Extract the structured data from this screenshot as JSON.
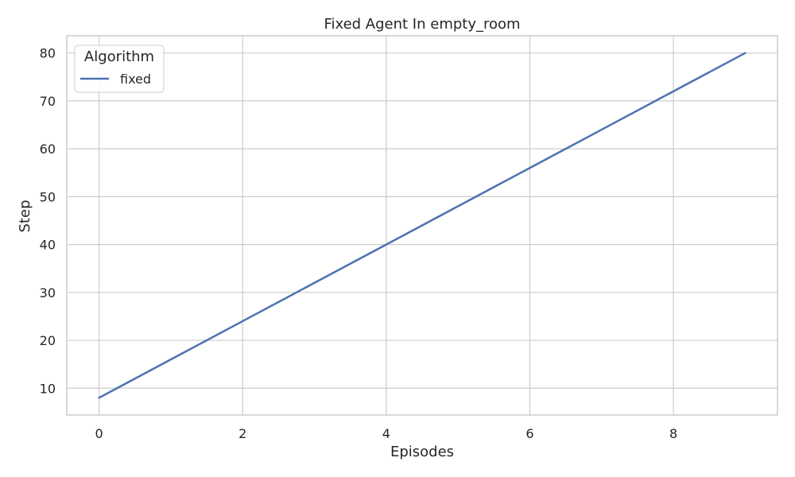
{
  "chart_data": {
    "type": "line",
    "title": "Fixed Agent In empty_room",
    "xlabel": "Episodes",
    "ylabel": "Step",
    "x": [
      0,
      1,
      2,
      3,
      4,
      5,
      6,
      7,
      8,
      9
    ],
    "series": [
      {
        "name": "fixed",
        "color": "#4c72b0",
        "values": [
          8,
          16,
          24,
          32,
          40,
          48,
          56,
          64,
          72,
          80
        ]
      }
    ],
    "xlim": [
      -0.45,
      9.45
    ],
    "ylim": [
      4.4,
      83.6
    ],
    "xticks": [
      0,
      2,
      4,
      6,
      8
    ],
    "yticks": [
      10,
      20,
      30,
      40,
      50,
      60,
      70,
      80
    ],
    "grid": true,
    "legend": {
      "title": "Algorithm",
      "placement": "top-left"
    }
  },
  "colors": {
    "background": "#ffffff",
    "grid": "#cccccc",
    "spine": "#cccccc",
    "text": "#262626",
    "series": "#4c72b0"
  }
}
